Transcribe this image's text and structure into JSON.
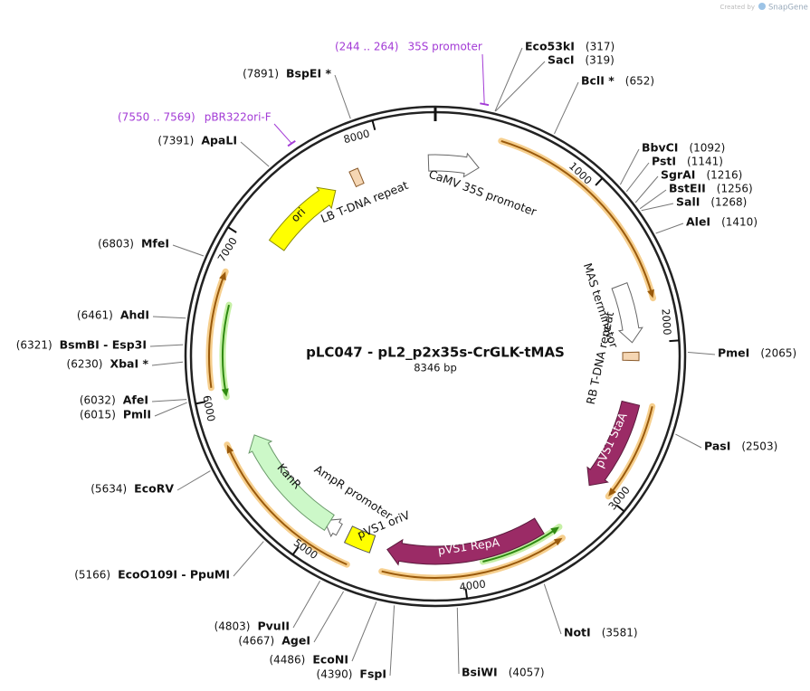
{
  "header": {
    "credit": "Created by",
    "brand": "SnapGene"
  },
  "map": {
    "name": "pLC047 - pL2_p2x35s-CrGLK-tMAS",
    "size": {
      "value": 8346,
      "label": "8346 bp"
    },
    "ticks": [
      1000,
      2000,
      3000,
      4000,
      5000,
      6000,
      7000,
      8000
    ],
    "features": [
      "CaMV 35S promoter",
      "MAS terminator",
      "RB T-DNA repeat",
      "pVS1 StaA",
      "pVS1 RepA",
      "pVS1 oriV",
      "AmpR promoter",
      "KanR",
      "ori",
      "LB T-DNA repeat"
    ],
    "primers": [
      {
        "range": "(244 .. 264)",
        "name": "35S promoter"
      },
      {
        "range": "(7550 .. 7569)",
        "name": "pBR322ori-F"
      }
    ],
    "sites": [
      {
        "name": "Eco53kI",
        "position": {
          "value": 317,
          "label": "(317)"
        }
      },
      {
        "name": "SacI",
        "position": {
          "value": 319,
          "label": "(319)"
        }
      },
      {
        "name": "BclI *",
        "position": {
          "value": 652,
          "label": "(652)"
        }
      },
      {
        "name": "BbvCI",
        "position": {
          "value": 1092,
          "label": "(1092)"
        }
      },
      {
        "name": "PstI",
        "position": {
          "value": 1141,
          "label": "(1141)"
        }
      },
      {
        "name": "SgrAI",
        "position": {
          "value": 1216,
          "label": "(1216)"
        }
      },
      {
        "name": "BstEII",
        "position": {
          "value": 1256,
          "label": "(1256)"
        }
      },
      {
        "name": "SalI",
        "position": {
          "value": 1268,
          "label": "(1268)"
        }
      },
      {
        "name": "AleI",
        "position": {
          "value": 1410,
          "label": "(1410)"
        }
      },
      {
        "name": "PmeI",
        "position": {
          "value": 2065,
          "label": "(2065)"
        }
      },
      {
        "name": "PasI",
        "position": {
          "value": 2503,
          "label": "(2503)"
        }
      },
      {
        "name": "NotI",
        "position": {
          "value": 3581,
          "label": "(3581)"
        }
      },
      {
        "name": "BsiWI",
        "position": {
          "value": 4057,
          "label": "(4057)"
        }
      },
      {
        "name": "FspI",
        "position": {
          "value": 4390,
          "label": "(4390)"
        }
      },
      {
        "name": "EcoNI",
        "position": {
          "value": 4486,
          "label": "(4486)"
        }
      },
      {
        "name": "AgeI",
        "position": {
          "value": 4667,
          "label": "(4667)"
        }
      },
      {
        "name": "PvuII",
        "position": {
          "value": 4803,
          "label": "(4803)"
        }
      },
      {
        "name": "EcoO109I  -  PpuMI",
        "position": {
          "value": 5166,
          "label": "(5166)"
        }
      },
      {
        "name": "EcoRV",
        "position": {
          "value": 5634,
          "label": "(5634)"
        }
      },
      {
        "name": "PmlI",
        "position": {
          "value": 6015,
          "label": "(6015)"
        }
      },
      {
        "name": "AfeI",
        "position": {
          "value": 6032,
          "label": "(6032)"
        }
      },
      {
        "name": "XbaI *",
        "position": {
          "value": 6230,
          "label": "(6230)"
        }
      },
      {
        "name": "BsmBI  -  Esp3I",
        "position": {
          "value": 6321,
          "label": "(6321)"
        }
      },
      {
        "name": "AhdI",
        "position": {
          "value": 6461,
          "label": "(6461)"
        }
      },
      {
        "name": "MfeI",
        "position": {
          "value": 6803,
          "label": "(6803)"
        }
      },
      {
        "name": "ApaLI",
        "position": {
          "value": 7391,
          "label": "(7391)"
        }
      },
      {
        "name": "BspEI *",
        "position": {
          "value": 7891,
          "label": "(7891)"
        }
      }
    ]
  }
}
